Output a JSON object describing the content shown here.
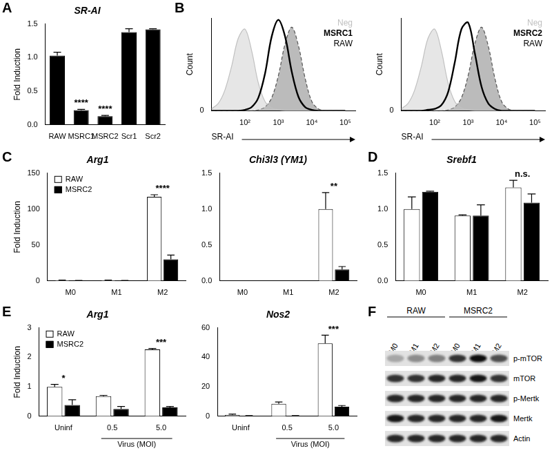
{
  "chart_data": [
    {
      "panel": "A",
      "type": "bar",
      "title": "SR-AI",
      "ylabel": "Fold Induction",
      "categories": [
        "RAW",
        "MSRC1",
        "MSRC2",
        "Scr1",
        "Scr2"
      ],
      "values": [
        1.03,
        0.22,
        0.13,
        1.38,
        1.42
      ],
      "errors": [
        0.05,
        0.01,
        0.01,
        0.05,
        0.01
      ],
      "color": "#000000",
      "annotations": [
        null,
        "****",
        "****",
        null,
        null
      ],
      "ylim": [
        0,
        1.5
      ],
      "yticks": [
        {
          "value": 0,
          "label": "0.0"
        },
        {
          "value": 0.5,
          "label": "0.5"
        },
        {
          "value": 1,
          "label": "1.0"
        },
        {
          "value": 1.5,
          "label": "1.5"
        }
      ],
      "grid": false
    },
    {
      "panel": "B",
      "type": "line",
      "xlabel": "SR-AI",
      "ylabel": "Count",
      "log": "x",
      "legend": "upper right",
      "x": [
        10,
        16,
        25,
        40,
        63,
        100,
        158,
        251,
        398,
        631,
        1000,
        1585,
        2512,
        3981,
        6310,
        10000,
        15849,
        25119,
        39811,
        63096,
        100000
      ],
      "series": [
        {
          "name": "Neg",
          "type": "area",
          "line_style": "solid",
          "color": "#c0c0c0",
          "values": [
            2,
            8,
            22,
            48,
            78,
            88,
            65,
            30,
            10,
            3,
            1,
            0,
            0,
            0,
            0,
            0,
            0,
            0,
            0,
            0,
            0
          ]
        },
        {
          "name": "MSRC1",
          "type": "line",
          "line_style": "solid",
          "color": "#000000",
          "values": [
            0,
            0,
            0,
            0,
            0,
            1,
            4,
            14,
            40,
            80,
            98,
            80,
            42,
            15,
            4,
            1,
            0,
            0,
            0,
            0,
            0
          ]
        },
        {
          "name": "RAW",
          "type": "area",
          "line_style": "dashed",
          "color": "#555555",
          "values": [
            0,
            0,
            0,
            0,
            0,
            0,
            0,
            1,
            4,
            14,
            38,
            72,
            90,
            70,
            35,
            10,
            2,
            0,
            0,
            0,
            0
          ]
        }
      ],
      "xlim": [
        10,
        200000
      ],
      "xticks": [
        {
          "value": 100,
          "label": "10²"
        },
        {
          "value": 1000,
          "label": "10³"
        },
        {
          "value": 10000,
          "label": "10⁴"
        },
        {
          "value": 100000,
          "label": "10⁵"
        }
      ],
      "ylim": [
        0,
        100
      ],
      "yticks": [
        0
      ],
      "grid": false
    },
    {
      "panel": "B",
      "type": "line",
      "xlabel": "SR-AI",
      "ylabel": "Count",
      "log": "x",
      "legend": "upper right",
      "x": [
        10,
        16,
        25,
        40,
        63,
        100,
        158,
        251,
        398,
        631,
        1000,
        1585,
        2512,
        3981,
        6310,
        10000,
        15849,
        25119,
        39811,
        63096,
        100000
      ],
      "series": [
        {
          "name": "Neg",
          "type": "area",
          "line_style": "solid",
          "color": "#c0c0c0",
          "values": [
            2,
            8,
            22,
            48,
            78,
            88,
            65,
            30,
            10,
            3,
            1,
            0,
            0,
            0,
            0,
            0,
            0,
            0,
            0,
            0,
            0
          ]
        },
        {
          "name": "MSRC2",
          "type": "line",
          "line_style": "solid",
          "color": "#000000",
          "values": [
            0,
            0,
            0,
            0,
            1,
            2,
            6,
            20,
            52,
            88,
            95,
            62,
            26,
            8,
            2,
            0,
            0,
            0,
            0,
            0,
            0
          ]
        },
        {
          "name": "RAW",
          "type": "area",
          "line_style": "dashed",
          "color": "#555555",
          "values": [
            0,
            0,
            0,
            0,
            0,
            0,
            0,
            1,
            4,
            14,
            38,
            72,
            90,
            70,
            35,
            10,
            2,
            0,
            0,
            0,
            0
          ]
        }
      ],
      "xlim": [
        10,
        200000
      ],
      "xticks": [
        {
          "value": 100,
          "label": "10²"
        },
        {
          "value": 1000,
          "label": "10³"
        },
        {
          "value": 10000,
          "label": "10⁴"
        },
        {
          "value": 100000,
          "label": "10⁵"
        }
      ],
      "ylim": [
        0,
        100
      ],
      "yticks": [
        0
      ],
      "grid": false
    },
    {
      "panel": "C",
      "type": "bar",
      "title": "Arg1",
      "ylabel": "Fold Induction",
      "legend": "upper left",
      "categories": [
        "M0",
        "M1",
        "M2"
      ],
      "series": [
        {
          "name": "RAW",
          "color": "#ffffff",
          "values": [
            1,
            1,
            117
          ],
          "errors": [
            0.2,
            0.2,
            3
          ]
        },
        {
          "name": "MSRC2",
          "color": "#000000",
          "values": [
            0.5,
            0.5,
            30
          ],
          "errors": [
            0.1,
            0.1,
            6
          ]
        }
      ],
      "annotations": [
        null,
        null,
        "****"
      ],
      "ylim": [
        0,
        150
      ],
      "yticks": [
        0,
        50,
        100,
        150
      ],
      "grid": false
    },
    {
      "panel": "C",
      "type": "bar",
      "title": "Chi3l3 (YM1)",
      "categories": [
        "M0",
        "M1",
        "M2"
      ],
      "series": [
        {
          "name": "RAW",
          "color": "#ffffff",
          "values": [
            0,
            0,
            1.0
          ],
          "errors": [
            0,
            0,
            0.23
          ]
        },
        {
          "name": "MSRC2",
          "color": "#000000",
          "values": [
            0,
            0,
            0.16
          ],
          "errors": [
            0,
            0,
            0.04
          ]
        }
      ],
      "annotations": [
        null,
        null,
        "**"
      ],
      "ylim": [
        0,
        1.5
      ],
      "yticks": [
        {
          "value": 0,
          "label": "0.0"
        },
        {
          "value": 0.5,
          "label": "0.5"
        },
        {
          "value": 1,
          "label": "1.0"
        },
        {
          "value": 1.5,
          "label": "1.5"
        }
      ],
      "grid": false
    },
    {
      "panel": "D",
      "type": "bar",
      "title": "Srebf1",
      "categories": [
        "M0",
        "M1",
        "M2"
      ],
      "series": [
        {
          "name": "RAW",
          "color": "#ffffff",
          "values": [
            1.0,
            0.91,
            1.3
          ],
          "errors": [
            0.17,
            0.01,
            0.1
          ]
        },
        {
          "name": "MSRC2",
          "color": "#000000",
          "values": [
            1.24,
            0.91,
            1.09
          ],
          "errors": [
            0.01,
            0.15,
            0.12
          ]
        }
      ],
      "annotations": [
        null,
        null,
        "n.s."
      ],
      "ylim": [
        0,
        1.5
      ],
      "yticks": [
        {
          "value": 0,
          "label": "0.0"
        },
        {
          "value": 0.5,
          "label": "0.5"
        },
        {
          "value": 1,
          "label": "1.0"
        },
        {
          "value": 1.5,
          "label": "1.5"
        }
      ],
      "grid": false
    },
    {
      "panel": "E",
      "type": "bar",
      "title": "Arg1",
      "ylabel": "Fold Induction",
      "legend": "upper left",
      "categories": [
        "Uninf",
        "0.5",
        "5.0"
      ],
      "category_groups": [
        null,
        "Virus (MOI)",
        "Virus (MOI)"
      ],
      "series": [
        {
          "name": "RAW",
          "color": "#ffffff",
          "values": [
            1.0,
            0.68,
            2.27
          ],
          "errors": [
            0.08,
            0.03,
            0.03
          ]
        },
        {
          "name": "MSRC2",
          "color": "#000000",
          "values": [
            0.38,
            0.25,
            0.3
          ],
          "errors": [
            0.18,
            0.08,
            0.03
          ]
        }
      ],
      "annotations": [
        "*",
        null,
        "***"
      ],
      "ylim": [
        0,
        3
      ],
      "yticks": [
        0,
        1,
        2,
        3
      ],
      "grid": false
    },
    {
      "panel": "E",
      "type": "bar",
      "title": "Nos2",
      "categories": [
        "Uninf",
        "0.5",
        "5.0"
      ],
      "category_groups": [
        null,
        "Virus (MOI)",
        "Virus (MOI)"
      ],
      "series": [
        {
          "name": "RAW",
          "color": "#ffffff",
          "values": [
            1.0,
            8.5,
            49.5
          ],
          "errors": [
            0.5,
            1.2,
            5.5
          ]
        },
        {
          "name": "MSRC2",
          "color": "#000000",
          "values": [
            0.3,
            0.3,
            6.5
          ],
          "errors": [
            0.1,
            0.1,
            0.8
          ]
        }
      ],
      "annotations": [
        null,
        null,
        "***"
      ],
      "ylim": [
        0,
        60
      ],
      "yticks": [
        0,
        20,
        40,
        60
      ],
      "grid": false
    }
  ],
  "blot": {
    "panel": "F",
    "groups": [
      {
        "name": "RAW",
        "lanes": [
          "M0",
          "M1",
          "M2"
        ]
      },
      {
        "name": "MSRC2",
        "lanes": [
          "M0",
          "M1",
          "M2"
        ]
      }
    ],
    "rows": [
      {
        "name": "p-mTOR",
        "intensity": [
          0.35,
          0.45,
          0.5,
          0.8,
          0.95,
          0.7
        ]
      },
      {
        "name": "mTOR",
        "intensity": [
          0.8,
          0.8,
          0.85,
          0.85,
          0.9,
          0.8
        ]
      },
      {
        "name": "p-Mertk",
        "intensity": [
          0.85,
          0.85,
          0.85,
          0.85,
          0.85,
          0.85
        ]
      },
      {
        "name": "Mertk",
        "intensity": [
          0.9,
          0.85,
          0.85,
          0.85,
          0.85,
          0.9
        ]
      },
      {
        "name": "Actin",
        "intensity": [
          0.85,
          0.85,
          0.85,
          0.85,
          0.85,
          0.85
        ]
      }
    ]
  }
}
